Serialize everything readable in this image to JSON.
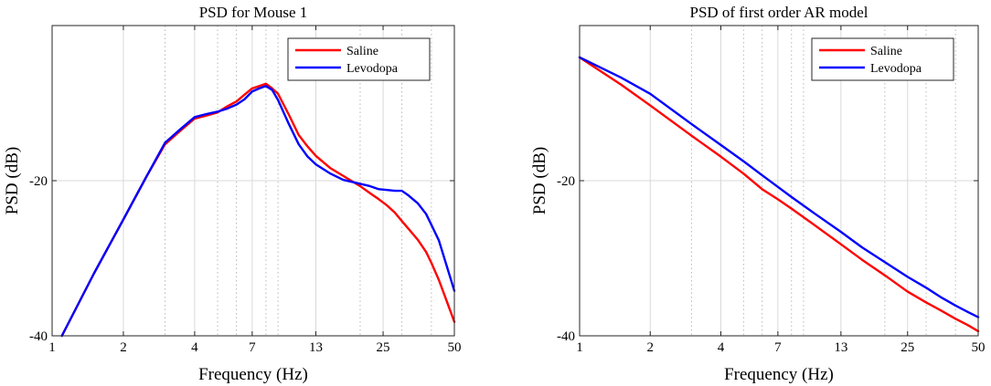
{
  "chart_data": [
    {
      "type": "line",
      "title": "PSD for Mouse 1",
      "xlabel": "Frequency (Hz)",
      "ylabel": "PSD (dB)",
      "xscale": "log",
      "xlim": [
        1,
        50
      ],
      "ylim": [
        -40,
        0
      ],
      "xticks": [
        1,
        2,
        4,
        7,
        13,
        25,
        50
      ],
      "xtick_labels": [
        "1",
        "2",
        "4",
        "7",
        "13",
        "25",
        "50"
      ],
      "xminor_grid": [
        3,
        5,
        6,
        8,
        9,
        20,
        30,
        40
      ],
      "yticks": [
        -40,
        -20
      ],
      "ytick_labels": [
        "-40",
        "-20"
      ],
      "grid": true,
      "legend_position": "top-right",
      "series": [
        {
          "name": "Saline",
          "color": "#ff0000",
          "x": [
            1.1,
            1.5,
            2,
            2.5,
            3,
            3.5,
            4,
            4.5,
            5,
            5.5,
            6,
            6.5,
            7,
            7.5,
            8,
            8.5,
            9,
            10,
            11,
            12,
            13,
            15,
            17,
            20,
            22,
            24,
            26,
            28,
            30,
            32,
            35,
            38,
            40,
            43,
            46,
            50
          ],
          "values": [
            -40,
            -32,
            -25,
            -19.5,
            -15.3,
            -13.5,
            -12,
            -11.6,
            -11.2,
            -10.4,
            -9.8,
            -8.9,
            -8.1,
            -7.8,
            -7.5,
            -8.1,
            -8.8,
            -11.5,
            -14.1,
            -15.6,
            -16.8,
            -18.4,
            -19.4,
            -20.7,
            -21.6,
            -22.4,
            -23.2,
            -24.1,
            -25.2,
            -26.2,
            -27.6,
            -29.2,
            -30.6,
            -32.8,
            -35.2,
            -38.2
          ]
        },
        {
          "name": "Levodopa",
          "color": "#0000ff",
          "x": [
            1.1,
            1.5,
            2,
            2.5,
            3,
            3.5,
            4,
            4.5,
            5,
            5.5,
            6,
            6.5,
            7,
            7.5,
            8,
            8.5,
            9,
            10,
            11,
            12,
            13,
            15,
            17,
            20,
            22,
            24,
            26,
            28,
            30,
            32,
            35,
            38,
            40,
            43,
            46,
            50
          ],
          "values": [
            -40,
            -32,
            -25,
            -19.5,
            -15.1,
            -13.3,
            -11.8,
            -11.4,
            -11.1,
            -10.7,
            -10.2,
            -9.5,
            -8.5,
            -8.1,
            -7.8,
            -8.3,
            -9.6,
            -12.7,
            -15.3,
            -16.9,
            -17.9,
            -19.1,
            -19.9,
            -20.4,
            -20.7,
            -21.1,
            -21.2,
            -21.3,
            -21.3,
            -21.9,
            -22.9,
            -24.3,
            -25.7,
            -27.7,
            -30.6,
            -34.2
          ]
        }
      ]
    },
    {
      "type": "line",
      "title": "PSD of first order AR model",
      "xlabel": "Frequency (Hz)",
      "ylabel": "PSD (dB)",
      "xscale": "log",
      "xlim": [
        1,
        50
      ],
      "ylim": [
        -40,
        0
      ],
      "xticks": [
        1,
        2,
        4,
        7,
        13,
        25,
        50
      ],
      "xtick_labels": [
        "1",
        "2",
        "4",
        "7",
        "13",
        "25",
        "50"
      ],
      "xminor_grid": [
        3,
        5,
        6,
        8,
        9,
        20,
        30,
        40
      ],
      "yticks": [
        -40,
        -20
      ],
      "ytick_labels": [
        "-40",
        "-20"
      ],
      "grid": true,
      "legend_position": "top-right",
      "series": [
        {
          "name": "Saline",
          "color": "#ff0000",
          "x": [
            1,
            1.5,
            2,
            3,
            4,
            5,
            6,
            7,
            8,
            10,
            13,
            16,
            20,
            25,
            30,
            35,
            40,
            45,
            50
          ],
          "values": [
            -4.1,
            -7.6,
            -10.3,
            -14.2,
            -16.9,
            -19.1,
            -21.1,
            -22.4,
            -23.6,
            -25.7,
            -28.2,
            -30.2,
            -32.2,
            -34.3,
            -35.7,
            -36.8,
            -37.8,
            -38.6,
            -39.4
          ]
        },
        {
          "name": "Levodopa",
          "color": "#0000ff",
          "x": [
            1,
            1.5,
            2,
            3,
            4,
            5,
            6,
            7,
            8,
            10,
            13,
            16,
            20,
            25,
            30,
            35,
            40,
            45,
            50
          ],
          "values": [
            -4.1,
            -6.7,
            -8.8,
            -12.7,
            -15.4,
            -17.5,
            -19.3,
            -20.8,
            -22.1,
            -24.2,
            -26.6,
            -28.6,
            -30.5,
            -32.4,
            -33.8,
            -35.1,
            -36.1,
            -36.9,
            -37.6
          ]
        }
      ]
    }
  ]
}
